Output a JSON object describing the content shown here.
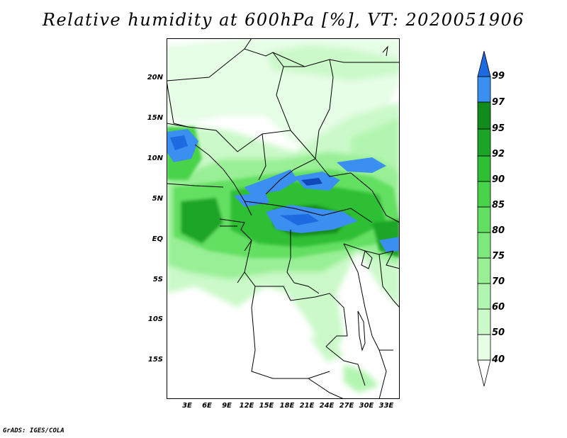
{
  "title": "Relative humidity at 600hPa [%], VT: 2020051906",
  "credit": "GrADS: IGES/COLA",
  "lat_labels": [
    "20N",
    "15N",
    "10N",
    "5N",
    "EQ",
    "5S",
    "10S",
    "15S"
  ],
  "lon_labels": [
    "3E",
    "6E",
    "9E",
    "12E",
    "15E",
    "18E",
    "21E",
    "24E",
    "27E",
    "30E",
    "33E"
  ],
  "colorbar": {
    "labels": [
      "40",
      "50",
      "60",
      "70",
      "75",
      "80",
      "85",
      "90",
      "92",
      "95",
      "97",
      "99"
    ],
    "colors": [
      "#ffffff",
      "#e6fde6",
      "#cbf9c9",
      "#b2f5b0",
      "#98ef95",
      "#7fe87c",
      "#63df62",
      "#48d34a",
      "#2fbf35",
      "#1aa527",
      "#128b1d",
      "#3b8ff0",
      "#1e6ae0",
      "#1048b8"
    ]
  }
}
